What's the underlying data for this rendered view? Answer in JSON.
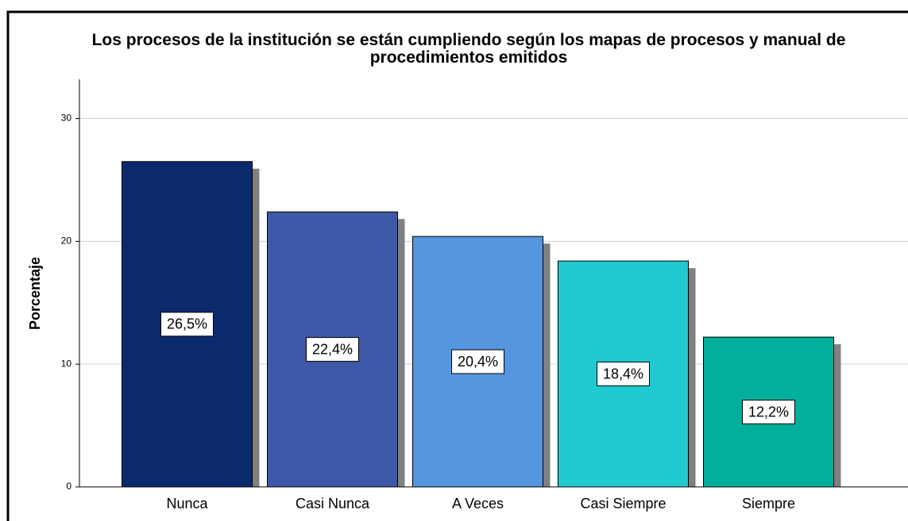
{
  "chart_data": {
    "type": "bar",
    "title": "Los procesos de la institución se están cumpliendo según los mapas de procesos y manual de procedimientos emitidos",
    "y_label": "Porcentaje",
    "categories": [
      "Nunca",
      "Casi Nunca",
      "A Veces",
      "Casi Siempre",
      "Siempre"
    ],
    "values": [
      26.5,
      22.4,
      20.4,
      18.4,
      12.2
    ],
    "value_labels": [
      "26,5%",
      "22,4%",
      "20,4%",
      "18,4%",
      "12,2%"
    ],
    "colors": [
      "#0b2a6e",
      "#3d58a6",
      "#5696e0",
      "#1fcbd0",
      "#00b09c"
    ],
    "ylim": [
      0,
      33.2
    ],
    "yticks": [
      0,
      10,
      20,
      30
    ],
    "grid": true
  }
}
